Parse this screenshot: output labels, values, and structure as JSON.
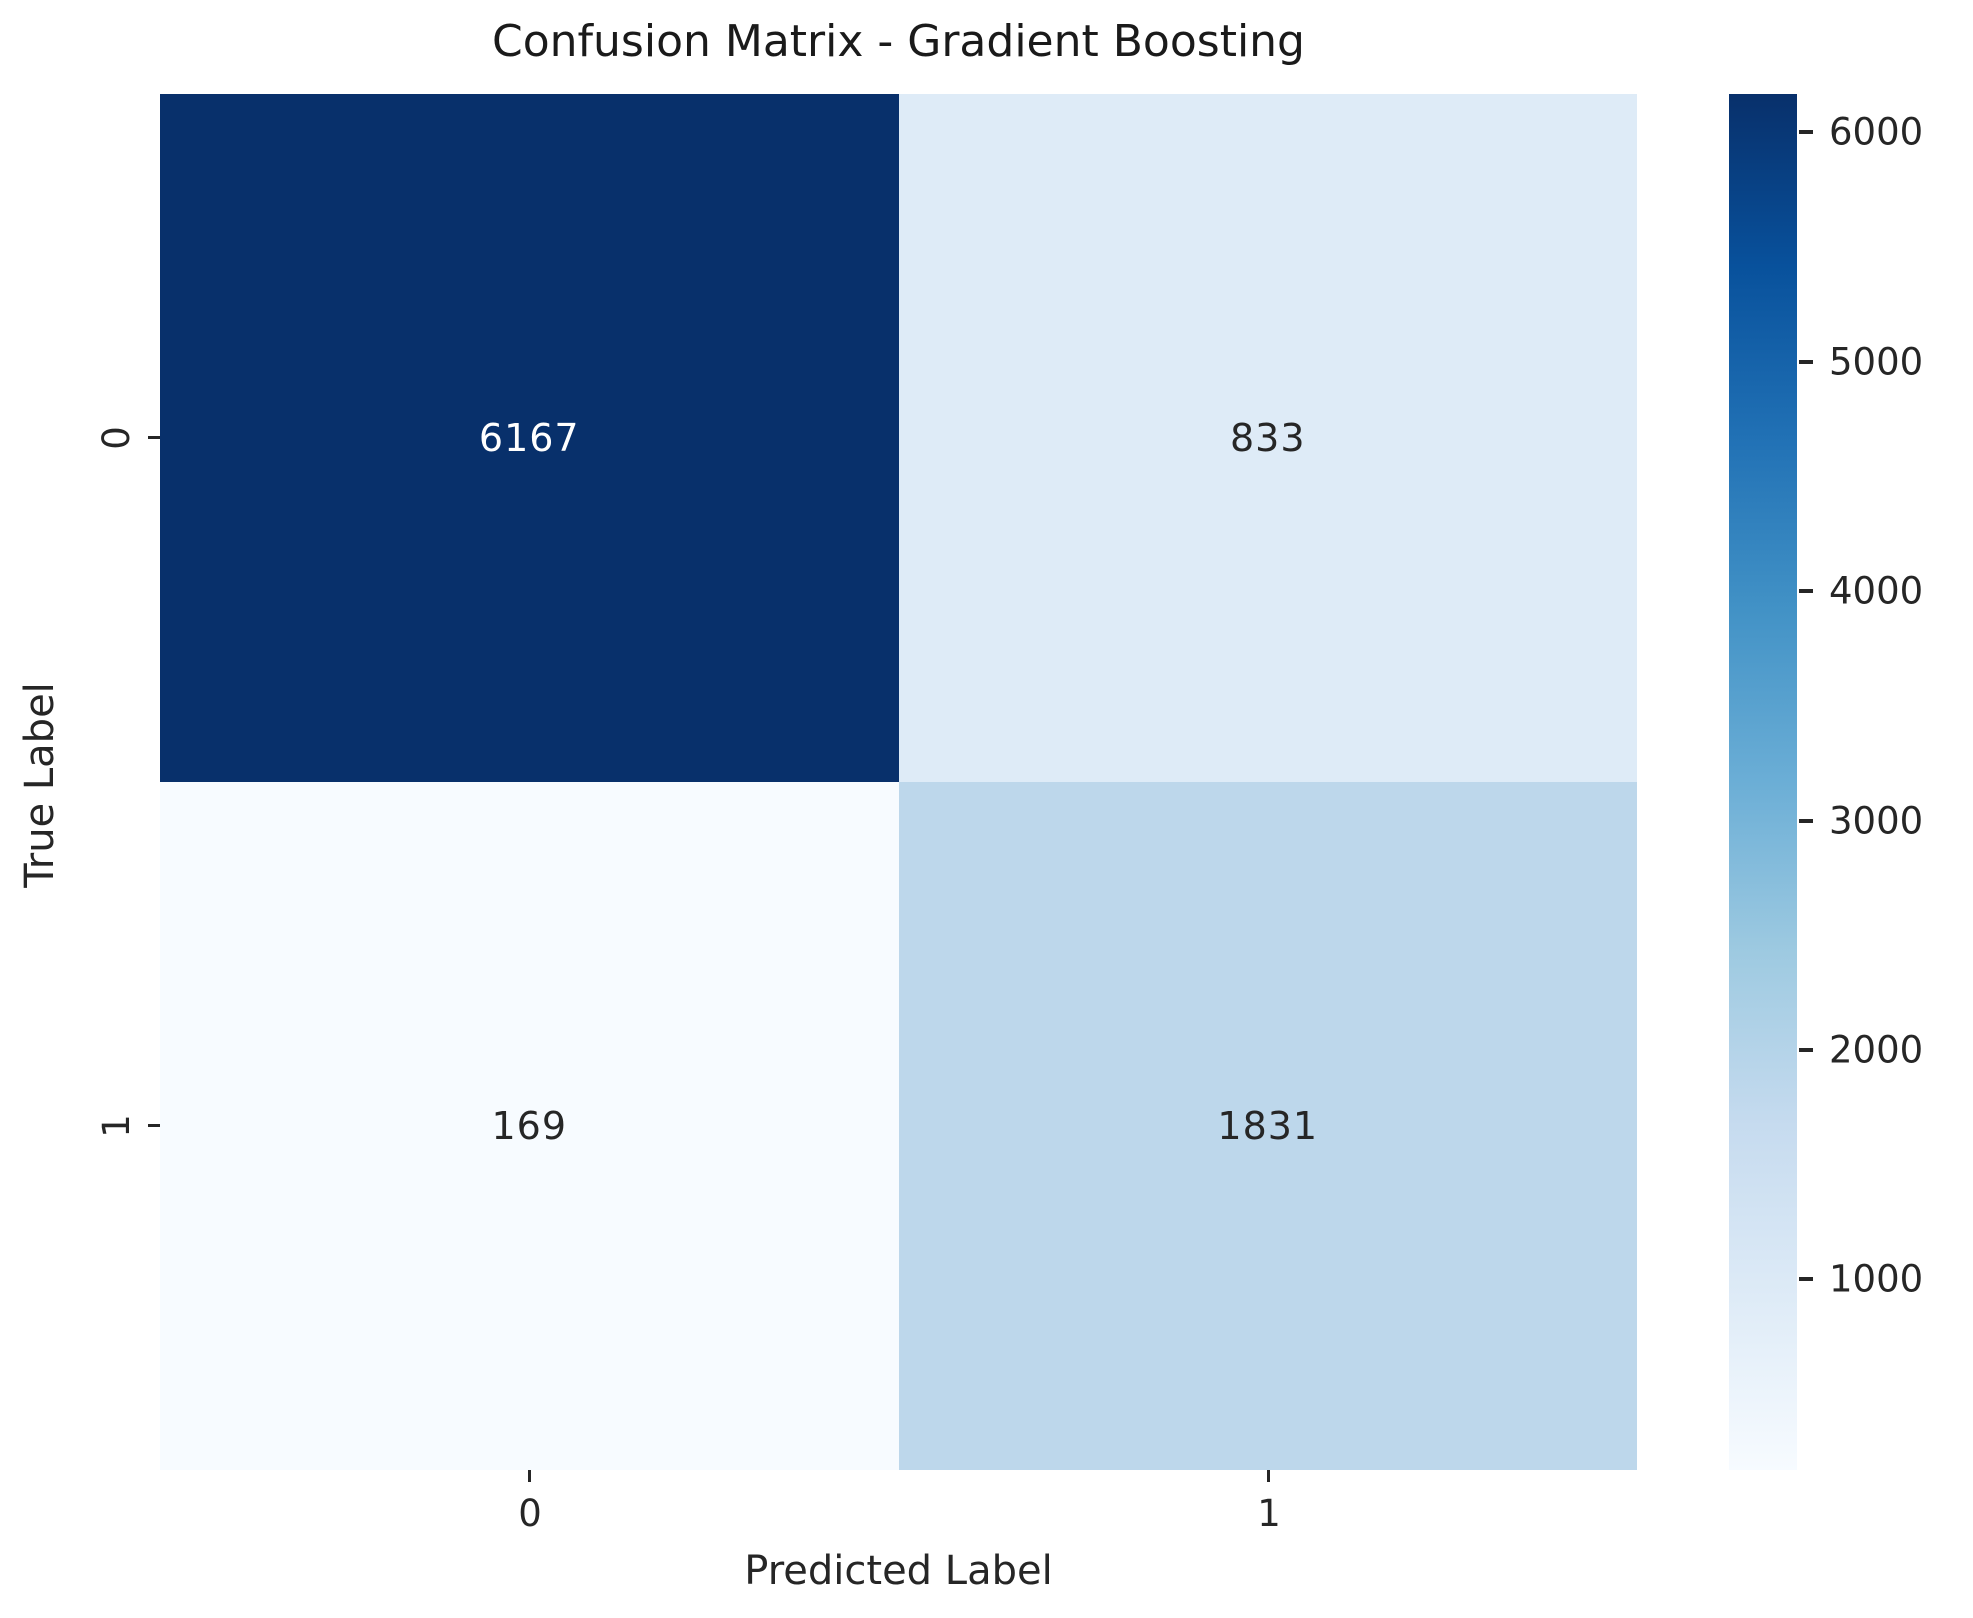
{
  "chart_data": {
    "type": "heatmap",
    "title": "Confusion Matrix - Gradient Boosting",
    "xlabel": "Predicted Label",
    "ylabel": "True Label",
    "x_tick_labels": [
      "0",
      "1"
    ],
    "y_tick_labels": [
      "0",
      "1"
    ],
    "matrix": [
      [
        "6167",
        "833"
      ],
      [
        "169",
        "1831"
      ]
    ],
    "matrix_numeric": [
      [
        6167,
        833
      ],
      [
        169,
        1831
      ]
    ],
    "vmin": 169,
    "vmax": 6167,
    "colormap": "Blues",
    "colorbar_ticks": [
      1000,
      2000,
      3000,
      4000,
      5000,
      6000
    ],
    "colorbar_position": "right",
    "colormap_stops_top_to_bottom": [
      "#08306B",
      "#08519C",
      "#2171B5",
      "#4292C6",
      "#6BAED6",
      "#9ECAE1",
      "#C6DBEF",
      "#DEEBF7",
      "#F7FBFF"
    ],
    "cell_colors": [
      [
        "#08306B",
        "#DEEBF7"
      ],
      [
        "#F7FBFF",
        "#BDD7EB"
      ]
    ],
    "cell_text_colors": [
      [
        "#FFFFFF",
        "#262626"
      ],
      [
        "#262626",
        "#262626"
      ]
    ],
    "text_color": "#262626",
    "background_color": "#FFFFFF",
    "grid": false,
    "legend": false
  }
}
